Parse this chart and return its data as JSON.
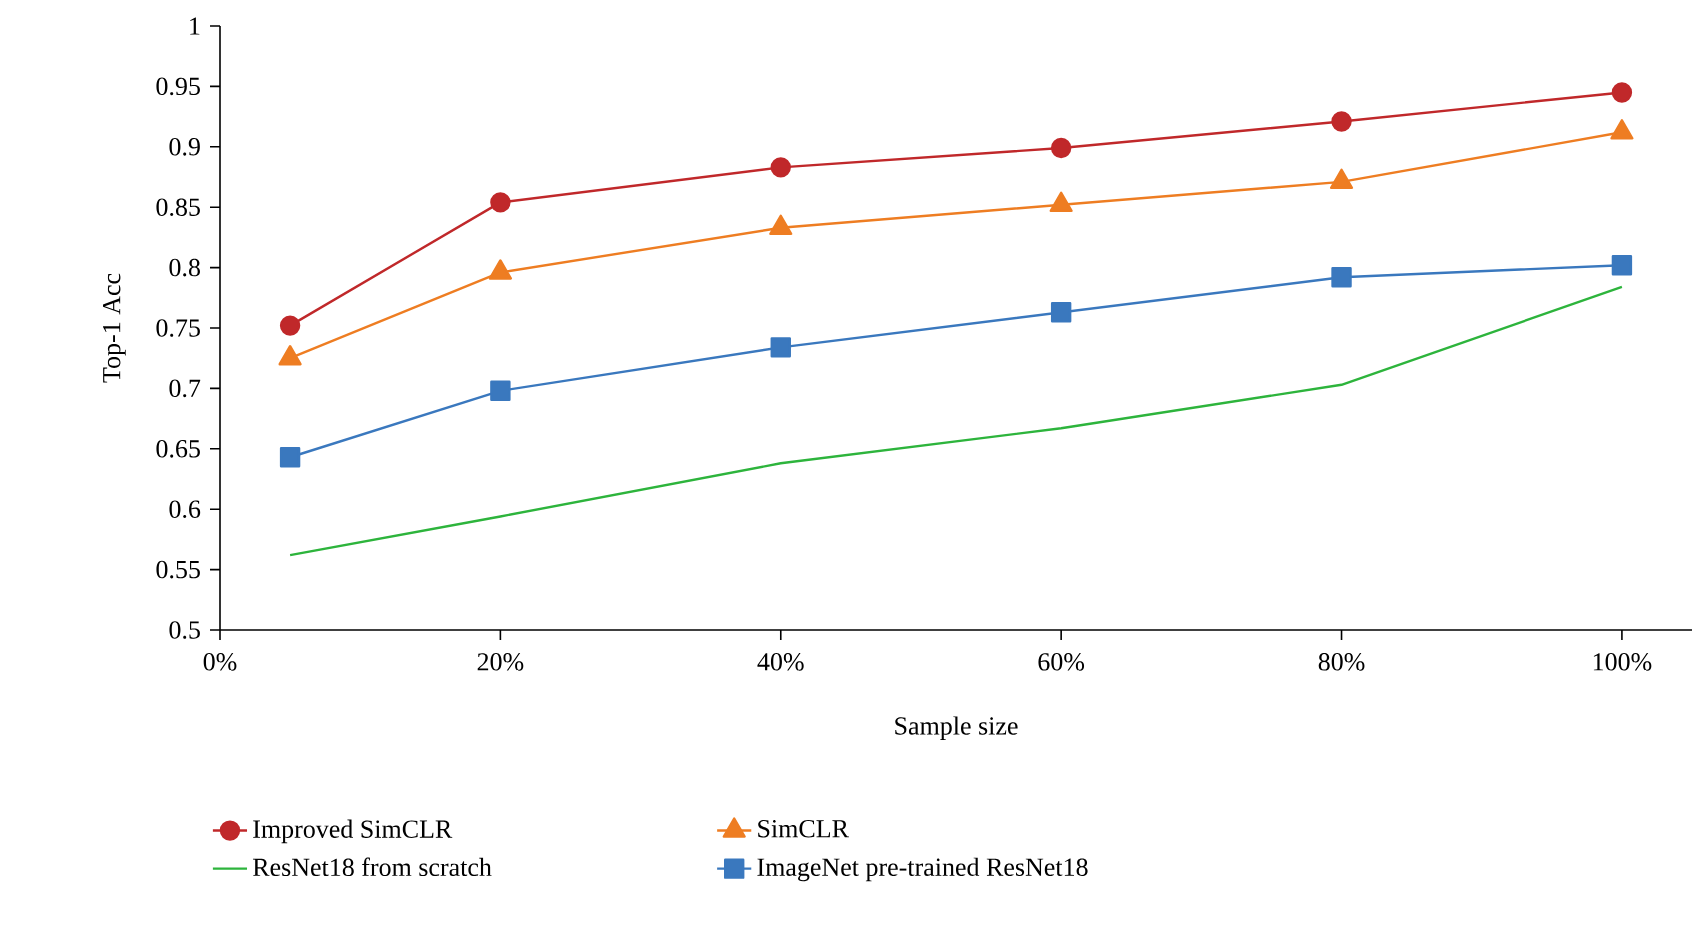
{
  "chart_data": {
    "type": "line",
    "xlabel": "Sample size",
    "ylabel": "Top-1 Acc",
    "x": [
      5,
      20,
      40,
      60,
      80,
      100
    ],
    "xlim": [
      0,
      105
    ],
    "xticks": [
      {
        "value": 0,
        "label": "0%"
      },
      {
        "value": 20,
        "label": "20%"
      },
      {
        "value": 40,
        "label": "40%"
      },
      {
        "value": 60,
        "label": "60%"
      },
      {
        "value": 80,
        "label": "80%"
      },
      {
        "value": 100,
        "label": "100%"
      }
    ],
    "ylim": [
      0.5,
      1
    ],
    "yticks": [
      0.5,
      0.55,
      0.6,
      0.65,
      0.7,
      0.75,
      0.8,
      0.85,
      0.9,
      0.95,
      1
    ],
    "grid": false,
    "legend": "bottom",
    "line_style": "solid",
    "series": [
      {
        "name": "Improved SimCLR",
        "color": "#c0282a",
        "marker": "circle",
        "values": [
          0.752,
          0.854,
          0.883,
          0.899,
          0.921,
          0.945
        ]
      },
      {
        "name": "SimCLR",
        "color": "#ee7d22",
        "marker": "triangle",
        "values": [
          0.725,
          0.796,
          0.833,
          0.852,
          0.871,
          0.912
        ]
      },
      {
        "name": "ResNet18 from scratch",
        "color": "#2db43c",
        "marker": "none",
        "values": [
          0.562,
          0.594,
          0.638,
          0.667,
          0.703,
          0.784
        ]
      },
      {
        "name": "ImageNet pre-trained ResNet18",
        "color": "#3a78be",
        "marker": "square",
        "values": [
          0.643,
          0.698,
          0.734,
          0.763,
          0.792,
          0.802
        ]
      }
    ]
  }
}
